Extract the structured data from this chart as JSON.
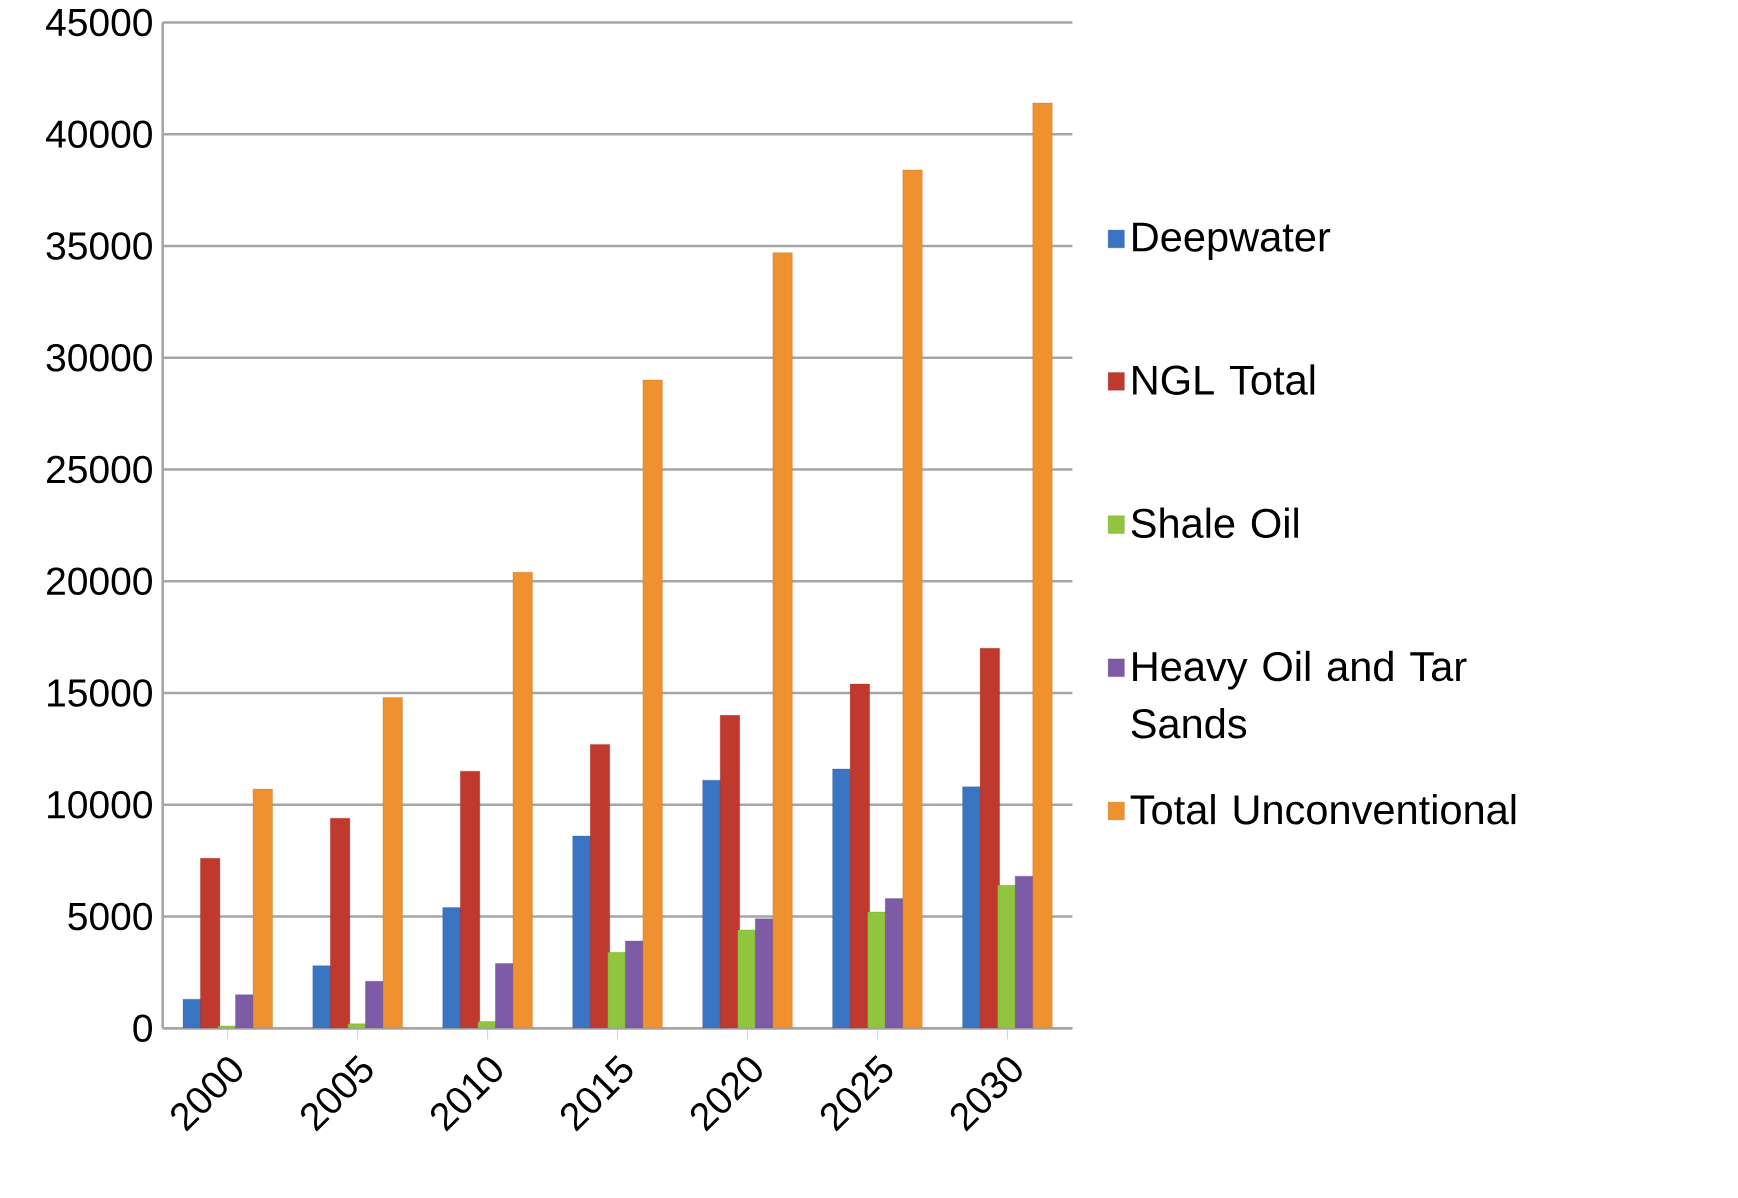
{
  "chart_data": {
    "type": "bar",
    "categories": [
      "2000",
      "2005",
      "2010",
      "2015",
      "2020",
      "2025",
      "2030"
    ],
    "series": [
      {
        "name": "Deepwater",
        "color": "#3a75c4",
        "values": [
          1300,
          2800,
          5400,
          8600,
          11100,
          11600,
          10800
        ]
      },
      {
        "name": "NGL Total",
        "color": "#c0392f",
        "values": [
          7600,
          9400,
          11500,
          12700,
          14000,
          15400,
          17000
        ]
      },
      {
        "name": "Shale Oil",
        "color": "#8fc63e",
        "values": [
          100,
          200,
          300,
          3400,
          4400,
          5200,
          6400
        ]
      },
      {
        "name": "Heavy Oil and Tar Sands",
        "color": "#7d5ba6",
        "values": [
          1500,
          2100,
          2900,
          3900,
          4900,
          5800,
          6800
        ]
      },
      {
        "name": "Total Unconventional",
        "color": "#f0912f",
        "values": [
          10700,
          14800,
          20400,
          29000,
          34700,
          38400,
          41400
        ]
      }
    ],
    "ylim": [
      0,
      45000
    ],
    "yticks": [
      0,
      5000,
      10000,
      15000,
      20000,
      25000,
      30000,
      35000,
      40000,
      45000
    ],
    "grid": "y",
    "legend": "right"
  }
}
